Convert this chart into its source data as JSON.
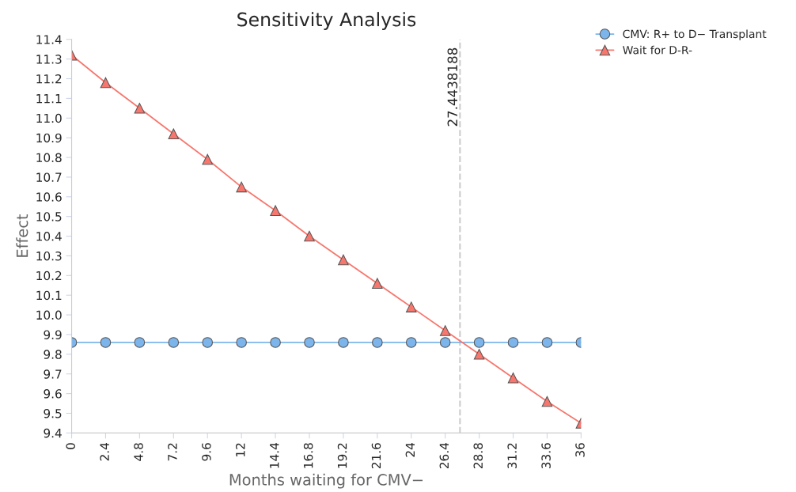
{
  "chart_data": {
    "type": "line",
    "title": "Sensitivity Analysis",
    "xlabel": "Months waiting for CMV−",
    "ylabel": "Effect",
    "x": [
      0,
      2.4,
      4.8,
      7.2,
      9.6,
      12,
      14.4,
      16.8,
      19.2,
      21.6,
      24,
      26.4,
      28.8,
      31.2,
      33.6,
      36
    ],
    "series": [
      {
        "name": "CMV: R+ to D− Transplant",
        "color": "#7cb5ec",
        "marker": "circle",
        "values": [
          9.86,
          9.86,
          9.86,
          9.86,
          9.86,
          9.86,
          9.86,
          9.86,
          9.86,
          9.86,
          9.86,
          9.86,
          9.86,
          9.86,
          9.86,
          9.86
        ]
      },
      {
        "name": "Wait for D-R-",
        "color": "#f7776e",
        "marker": "triangle",
        "values": [
          11.32,
          11.18,
          11.05,
          10.92,
          10.79,
          10.65,
          10.53,
          10.4,
          10.28,
          10.16,
          10.04,
          9.92,
          9.8,
          9.68,
          9.56,
          9.45
        ]
      }
    ],
    "xlim": [
      0,
      36
    ],
    "xticks": [
      0,
      2.4,
      4.8,
      7.2,
      9.6,
      12,
      14.4,
      16.8,
      19.2,
      21.6,
      24,
      26.4,
      28.8,
      31.2,
      33.6,
      36
    ],
    "ylim": [
      9.4,
      11.4
    ],
    "yticks": [
      {
        "value": 9.4,
        "label": "9.4"
      },
      {
        "value": 9.5,
        "label": "9.5"
      },
      {
        "value": 9.6,
        "label": "9.6"
      },
      {
        "value": 9.7,
        "label": "9.7"
      },
      {
        "value": 9.8,
        "label": "9.8"
      },
      {
        "value": 9.9,
        "label": "9.9"
      },
      {
        "value": 10.0,
        "label": "10.0"
      },
      {
        "value": 10.1,
        "label": "10.1"
      },
      {
        "value": 10.2,
        "label": "10.2"
      },
      {
        "value": 10.3,
        "label": "10.3"
      },
      {
        "value": 10.4,
        "label": "10.4"
      },
      {
        "value": 10.5,
        "label": "10.5"
      },
      {
        "value": 10.6,
        "label": "10.6"
      },
      {
        "value": 10.7,
        "label": "10.7"
      },
      {
        "value": 10.8,
        "label": "10.8"
      },
      {
        "value": 10.9,
        "label": "10.9"
      },
      {
        "value": 11.0,
        "label": "11.0"
      },
      {
        "value": 11.1,
        "label": "11.1"
      },
      {
        "value": 11.2,
        "label": "11.2"
      },
      {
        "value": 11.3,
        "label": "11.3"
      },
      {
        "value": 11.4,
        "label": "11.4"
      }
    ],
    "ref_lines": [
      {
        "axis": "x",
        "value": 27.4438188,
        "label": "27.4438188",
        "color": "#cccccc",
        "line_style": "dashed"
      }
    ],
    "grid": false,
    "legend": "top right"
  }
}
